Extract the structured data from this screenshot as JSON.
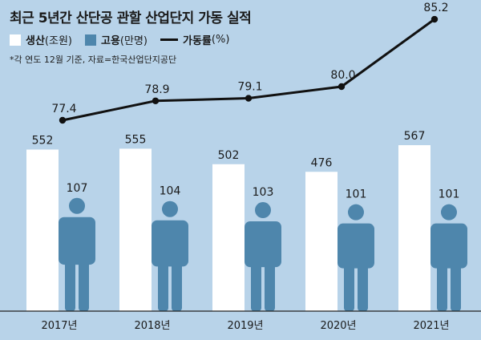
{
  "chart_data": {
    "type": "bar",
    "title": "최근 5년간 산단공 관할 산업단지 가동 실적",
    "note": "*각 연도 12월 기준, 자료=한국산업단지공단",
    "categories": [
      "2017년",
      "2018년",
      "2019년",
      "2020년",
      "2021년"
    ],
    "series": [
      {
        "name": "생산",
        "unit": "(조원)",
        "type": "bar",
        "color": "#ffffff",
        "values": [
          552,
          555,
          502,
          476,
          567
        ]
      },
      {
        "name": "고용",
        "unit": "(만명)",
        "type": "pictogram",
        "color": "#4e86ac",
        "values": [
          107,
          104,
          103,
          101,
          101
        ]
      },
      {
        "name": "가동률",
        "unit": "(%)",
        "type": "line",
        "color": "#111111",
        "values": [
          77.4,
          78.9,
          79.1,
          80.0,
          85.2
        ],
        "labels": [
          "77.4",
          "78.9",
          "79.1",
          "80.0",
          "85.2"
        ]
      }
    ],
    "ylim": [
      0,
      600
    ],
    "grid": false,
    "legend": "top-left"
  }
}
